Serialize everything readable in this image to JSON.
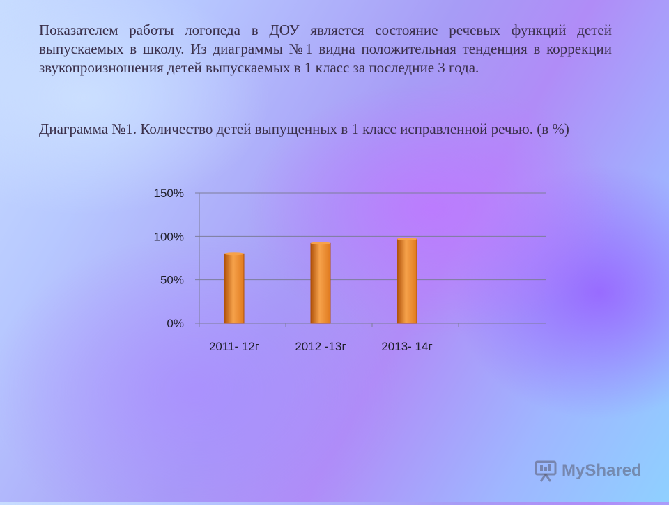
{
  "slide": {
    "intro_text": "Показателем работы логопеда в ДОУ является состояние речевых функций детей выпускаемых в школу. Из диаграммы №1 видна положительная тенденция в коррекции звукопроизношения детей выпускаемых в 1 класс за последние 3 года.",
    "chart_caption": "Диаграмма №1.     Количество детей выпущенных в 1 класс исправленной речью. (в %)"
  },
  "chart_data": {
    "type": "bar",
    "title": "",
    "xlabel": "",
    "ylabel": "",
    "categories": [
      "2011- 12г",
      "2012 -13г",
      "2013- 14г"
    ],
    "values": [
      80,
      92,
      97
    ],
    "ylim": [
      0,
      150
    ],
    "y_ticks": [
      0,
      50,
      100,
      150
    ],
    "y_tick_labels": [
      "0%",
      "50%",
      "100%",
      "150%"
    ],
    "grid": true,
    "bar_color": "#e07a1e",
    "bar_color_dark": "#b0520a",
    "bar_color_light": "#f6a24b"
  },
  "watermark": {
    "text": "MyShared"
  }
}
